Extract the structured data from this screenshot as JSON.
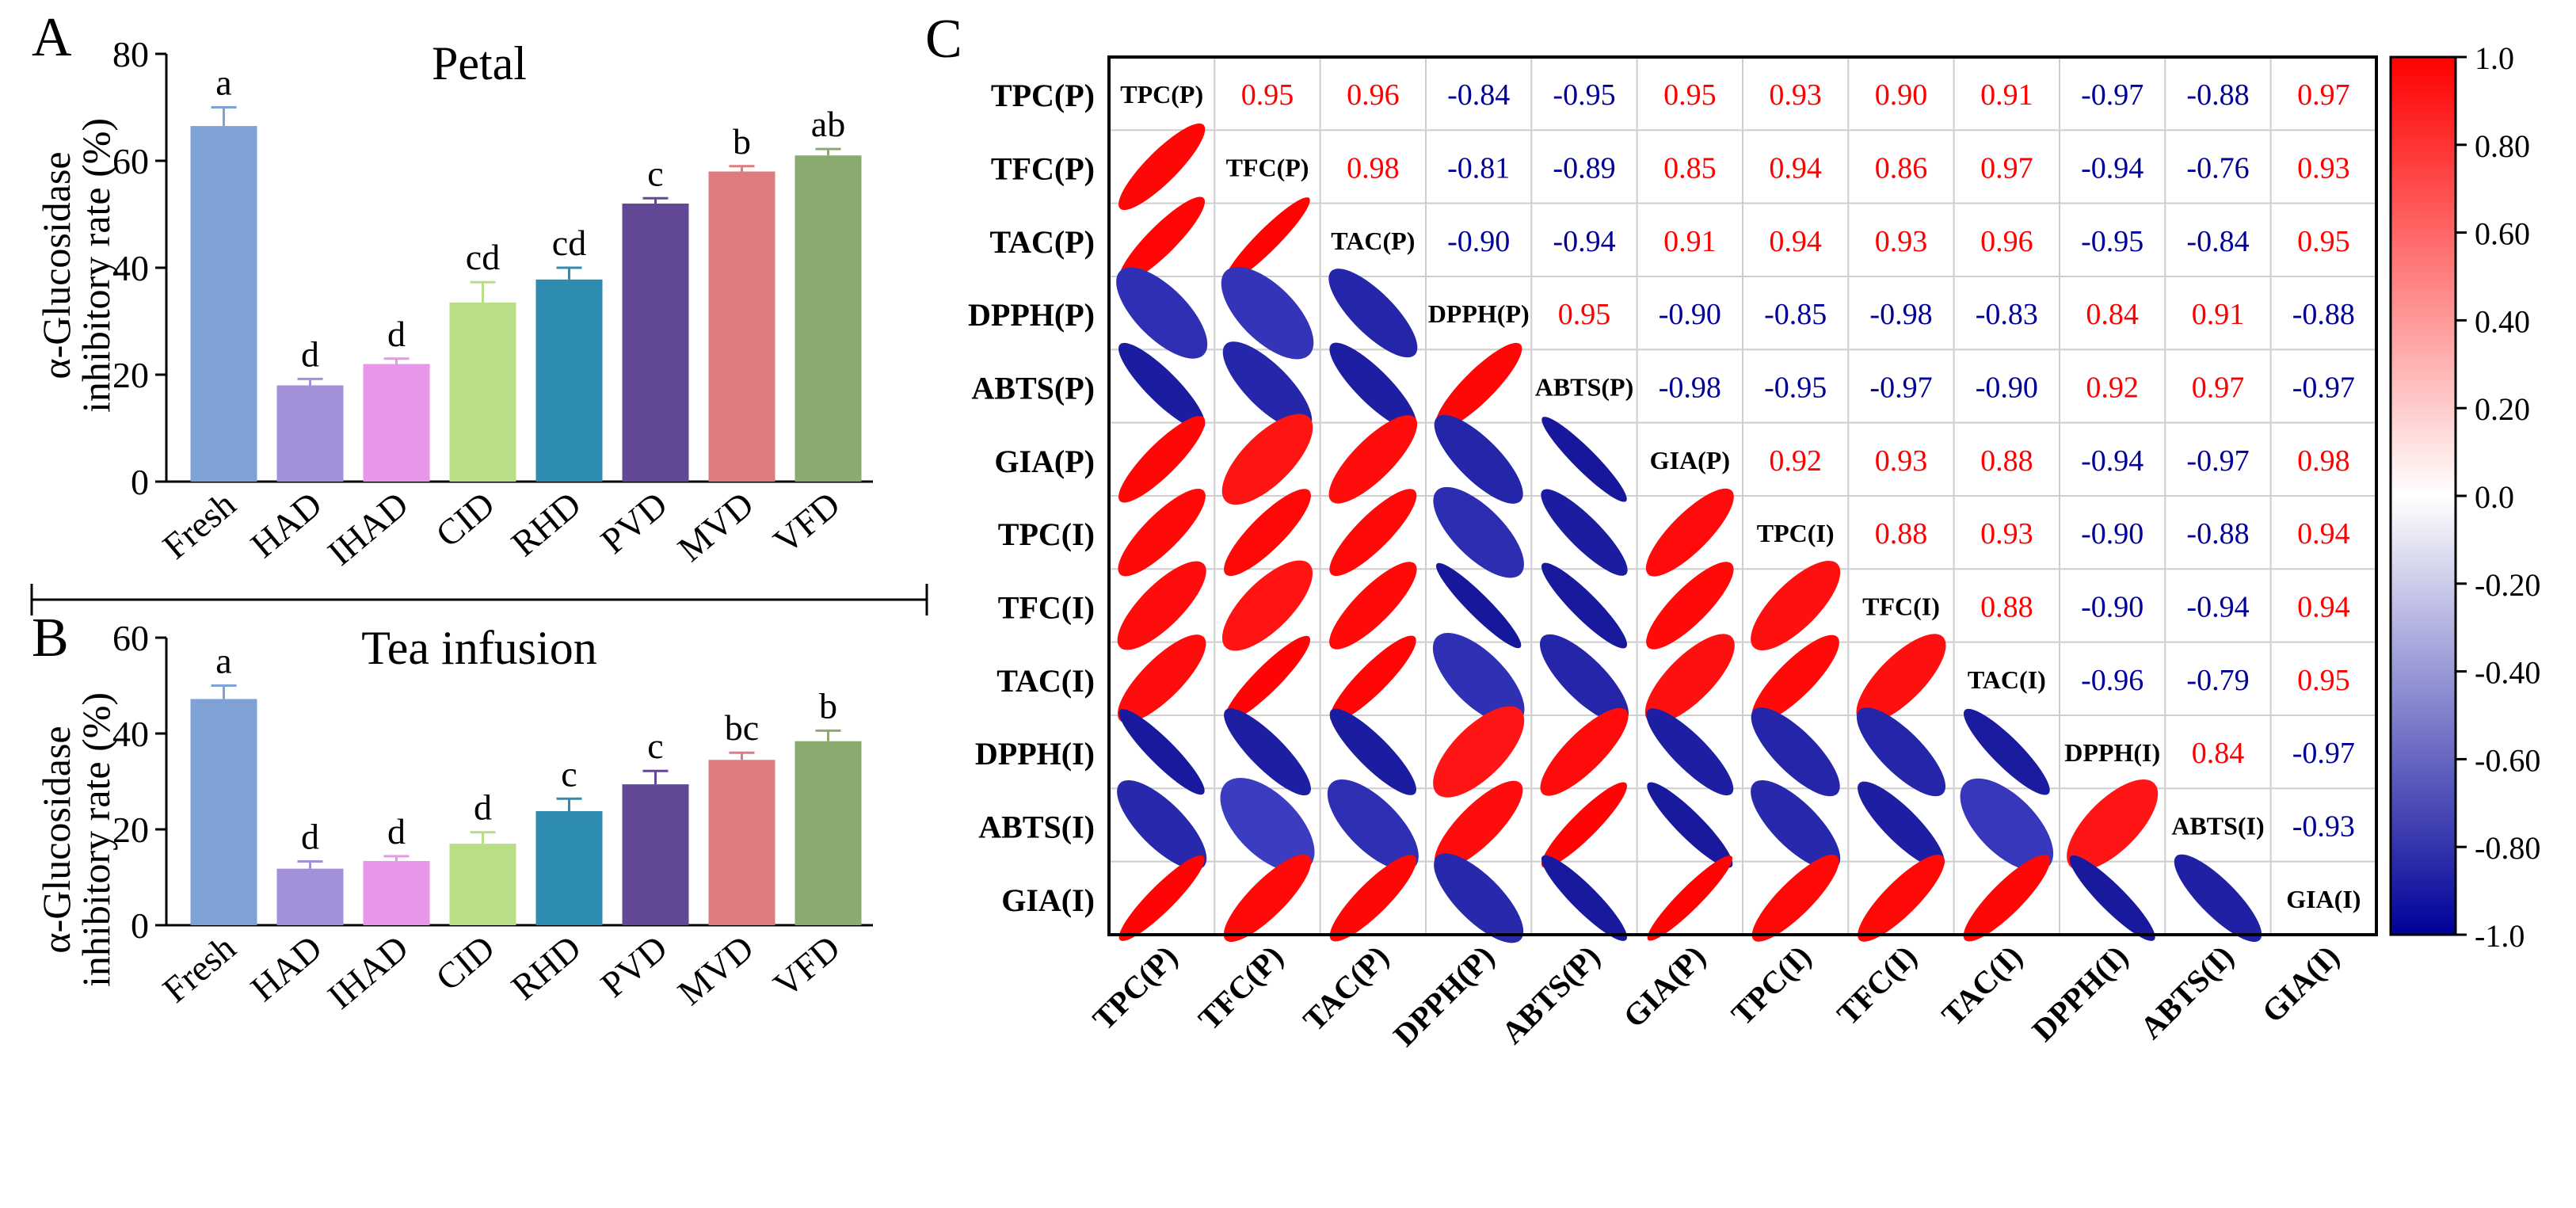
{
  "chart_data": [
    {
      "panel": "A",
      "type": "bar",
      "title": "Petal",
      "ylabel_line1": "α-Glucosidase",
      "ylabel_line2": "inhibitory rate (%)",
      "categories": [
        "Fresh",
        "HAD",
        "IHAD",
        "CID",
        "RHD",
        "PVD",
        "MVD",
        "VFD"
      ],
      "values": [
        66.5,
        18.0,
        22.0,
        33.5,
        37.8,
        52.0,
        58.0,
        61.0
      ],
      "errors": [
        3.5,
        1.2,
        1.0,
        3.8,
        2.2,
        1.0,
        1.0,
        1.2
      ],
      "letters": [
        "a",
        "d",
        "d",
        "cd",
        "cd",
        "c",
        "b",
        "ab"
      ],
      "colors": [
        "#7ea1d6",
        "#a291d8",
        "#e896ea",
        "#b9de86",
        "#2e8cb1",
        "#634895",
        "#de7b80",
        "#8baa6f"
      ],
      "ylim": [
        0,
        80
      ],
      "yticks": [
        0,
        20,
        40,
        60,
        80
      ]
    },
    {
      "panel": "B",
      "type": "bar",
      "title": "Tea infusion",
      "ylabel_line1": "α-Glucosidase",
      "ylabel_line2": "inhibitory rate (%)",
      "categories": [
        "Fresh",
        "HAD",
        "IHAD",
        "CID",
        "RHD",
        "PVD",
        "MVD",
        "VFD"
      ],
      "values": [
        47.2,
        11.8,
        13.4,
        17.0,
        23.8,
        29.4,
        34.5,
        38.4
      ],
      "errors": [
        2.8,
        1.5,
        1.0,
        2.4,
        2.6,
        2.8,
        1.5,
        2.2
      ],
      "letters": [
        "a",
        "d",
        "d",
        "d",
        "c",
        "c",
        "bc",
        "b"
      ],
      "colors": [
        "#7ea1d6",
        "#a291d8",
        "#e896ea",
        "#b9de86",
        "#2e8cb1",
        "#634895",
        "#de7b80",
        "#8baa6f"
      ],
      "ylim": [
        0,
        60
      ],
      "yticks": [
        0,
        20,
        40,
        60
      ]
    },
    {
      "panel": "C",
      "type": "heatmap",
      "title": "",
      "labels": [
        "TPC(P)",
        "TFC(P)",
        "TAC(P)",
        "DPPH(P)",
        "ABTS(P)",
        "GIA(P)",
        "TPC(I)",
        "TFC(I)",
        "TAC(I)",
        "DPPH(I)",
        "ABTS(I)",
        "GIA(I)"
      ],
      "upper_text": [
        [
          null,
          "0.95",
          "0.96",
          "-0.84",
          "-0.95",
          "0.95",
          "0.93",
          "0.90",
          "0.91",
          "-0.97",
          "-0.88",
          "0.97"
        ],
        [
          null,
          null,
          "0.98",
          "-0.81",
          "-0.89",
          "0.85",
          "0.94",
          "0.86",
          "0.97",
          "-0.94",
          "-0.76",
          "0.93"
        ],
        [
          null,
          null,
          null,
          "-0.90",
          "-0.94",
          "0.91",
          "0.94",
          "0.93",
          "0.96",
          "-0.95",
          "-0.84",
          "0.95"
        ],
        [
          null,
          null,
          null,
          null,
          "0.95",
          "-0.90",
          "-0.85",
          "-0.98",
          "-0.83",
          "0.84",
          "0.91",
          "-0.88"
        ],
        [
          null,
          null,
          null,
          null,
          null,
          "-0.98",
          "-0.95",
          "-0.97",
          "-0.90",
          "0.92",
          "0.97",
          "-0.97"
        ],
        [
          null,
          null,
          null,
          null,
          null,
          null,
          "0.92",
          "0.93",
          "0.88",
          "-0.94",
          "-0.97",
          "0.98"
        ],
        [
          null,
          null,
          null,
          null,
          null,
          null,
          null,
          "0.88",
          "0.93",
          "-0.90",
          "-0.88",
          "0.94"
        ],
        [
          null,
          null,
          null,
          null,
          null,
          null,
          null,
          null,
          "0.88",
          "-0.90",
          "-0.94",
          "0.94"
        ],
        [
          null,
          null,
          null,
          null,
          null,
          null,
          null,
          null,
          null,
          "-0.96",
          "-0.79",
          "0.95"
        ],
        [
          null,
          null,
          null,
          null,
          null,
          null,
          null,
          null,
          null,
          null,
          "0.84",
          "-0.97"
        ],
        [
          null,
          null,
          null,
          null,
          null,
          null,
          null,
          null,
          null,
          null,
          null,
          "-0.93"
        ],
        [
          null,
          null,
          null,
          null,
          null,
          null,
          null,
          null,
          null,
          null,
          null,
          null
        ]
      ],
      "colorbar_ticks": [
        "1.0",
        "0.80",
        "0.60",
        "0.40",
        "0.20",
        "0.0",
        "-0.20",
        "-0.40",
        "-0.60",
        "-0.80",
        "-1.0"
      ],
      "color_pos": "#ff0000",
      "color_neg": "#000099"
    }
  ]
}
